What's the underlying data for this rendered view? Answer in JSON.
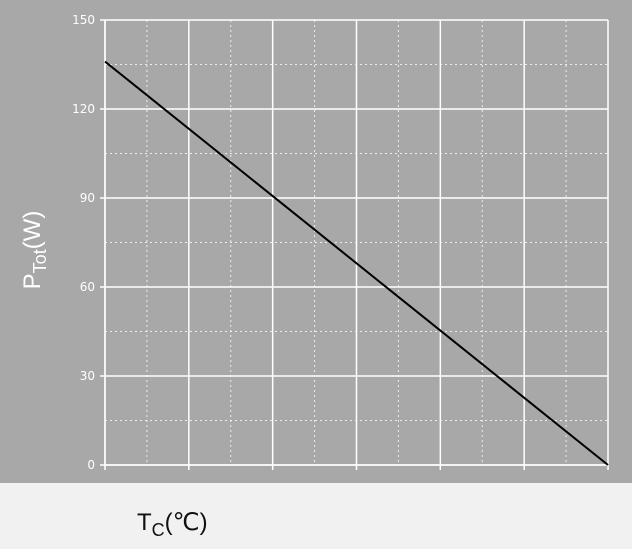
{
  "chart_data": {
    "type": "line",
    "xlabel": "T",
    "xlabel_sub": "C",
    "xlabel_unit": "(℃)",
    "ylabel": "P",
    "ylabel_sub": "Tot",
    "ylabel_unit": "(W)",
    "xlim": [
      25,
      175
    ],
    "ylim": [
      0,
      150
    ],
    "xticks": [
      "25",
      "50",
      "75",
      "100",
      "125",
      "150",
      "175"
    ],
    "yticks": [
      "0",
      "30",
      "60",
      "90",
      "120",
      "150"
    ],
    "grid": true,
    "series": [
      {
        "x": [
          25,
          175
        ],
        "y": [
          136,
          0
        ]
      }
    ],
    "colors": {
      "background": "#a8a8a8",
      "grid": "#ffffff",
      "line": "#000000"
    }
  }
}
